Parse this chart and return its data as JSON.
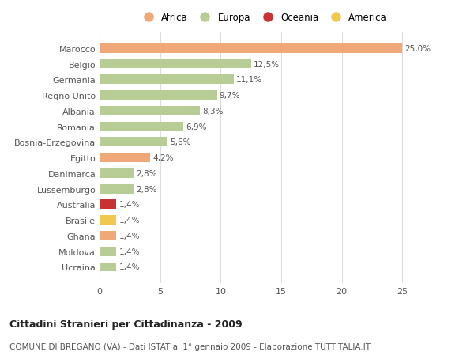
{
  "categories": [
    "Marocco",
    "Belgio",
    "Germania",
    "Regno Unito",
    "Albania",
    "Romania",
    "Bosnia-Erzegovina",
    "Egitto",
    "Danimarca",
    "Lussemburgo",
    "Australia",
    "Brasile",
    "Ghana",
    "Moldova",
    "Ucraina"
  ],
  "values": [
    25.0,
    12.5,
    11.1,
    9.7,
    8.3,
    6.9,
    5.6,
    4.2,
    2.8,
    2.8,
    1.4,
    1.4,
    1.4,
    1.4,
    1.4
  ],
  "labels": [
    "25,0%",
    "12,5%",
    "11,1%",
    "9,7%",
    "8,3%",
    "6,9%",
    "5,6%",
    "4,2%",
    "2,8%",
    "2,8%",
    "1,4%",
    "1,4%",
    "1,4%",
    "1,4%",
    "1,4%"
  ],
  "continent": [
    "Africa",
    "Europa",
    "Europa",
    "Europa",
    "Europa",
    "Europa",
    "Europa",
    "Africa",
    "Europa",
    "Europa",
    "Oceania",
    "America",
    "Africa",
    "Europa",
    "Europa"
  ],
  "colors": {
    "Africa": "#F0A878",
    "Europa": "#B8CC96",
    "Oceania": "#C83232",
    "America": "#F0C850"
  },
  "legend_order": [
    "Africa",
    "Europa",
    "Oceania",
    "America"
  ],
  "legend_colors": {
    "Africa": "#F0A878",
    "Europa": "#B8CC96",
    "Oceania": "#C83232",
    "America": "#F0C850"
  },
  "xlim": [
    0,
    27
  ],
  "xticks": [
    0,
    5,
    10,
    15,
    20,
    25
  ],
  "title": "Cittadini Stranieri per Cittadinanza - 2009",
  "subtitle": "COMUNE DI BREGANO (VA) - Dati ISTAT al 1° gennaio 2009 - Elaborazione TUTTITALIA.IT",
  "bg_color": "#ffffff",
  "grid_color": "#dddddd",
  "bar_height": 0.6
}
